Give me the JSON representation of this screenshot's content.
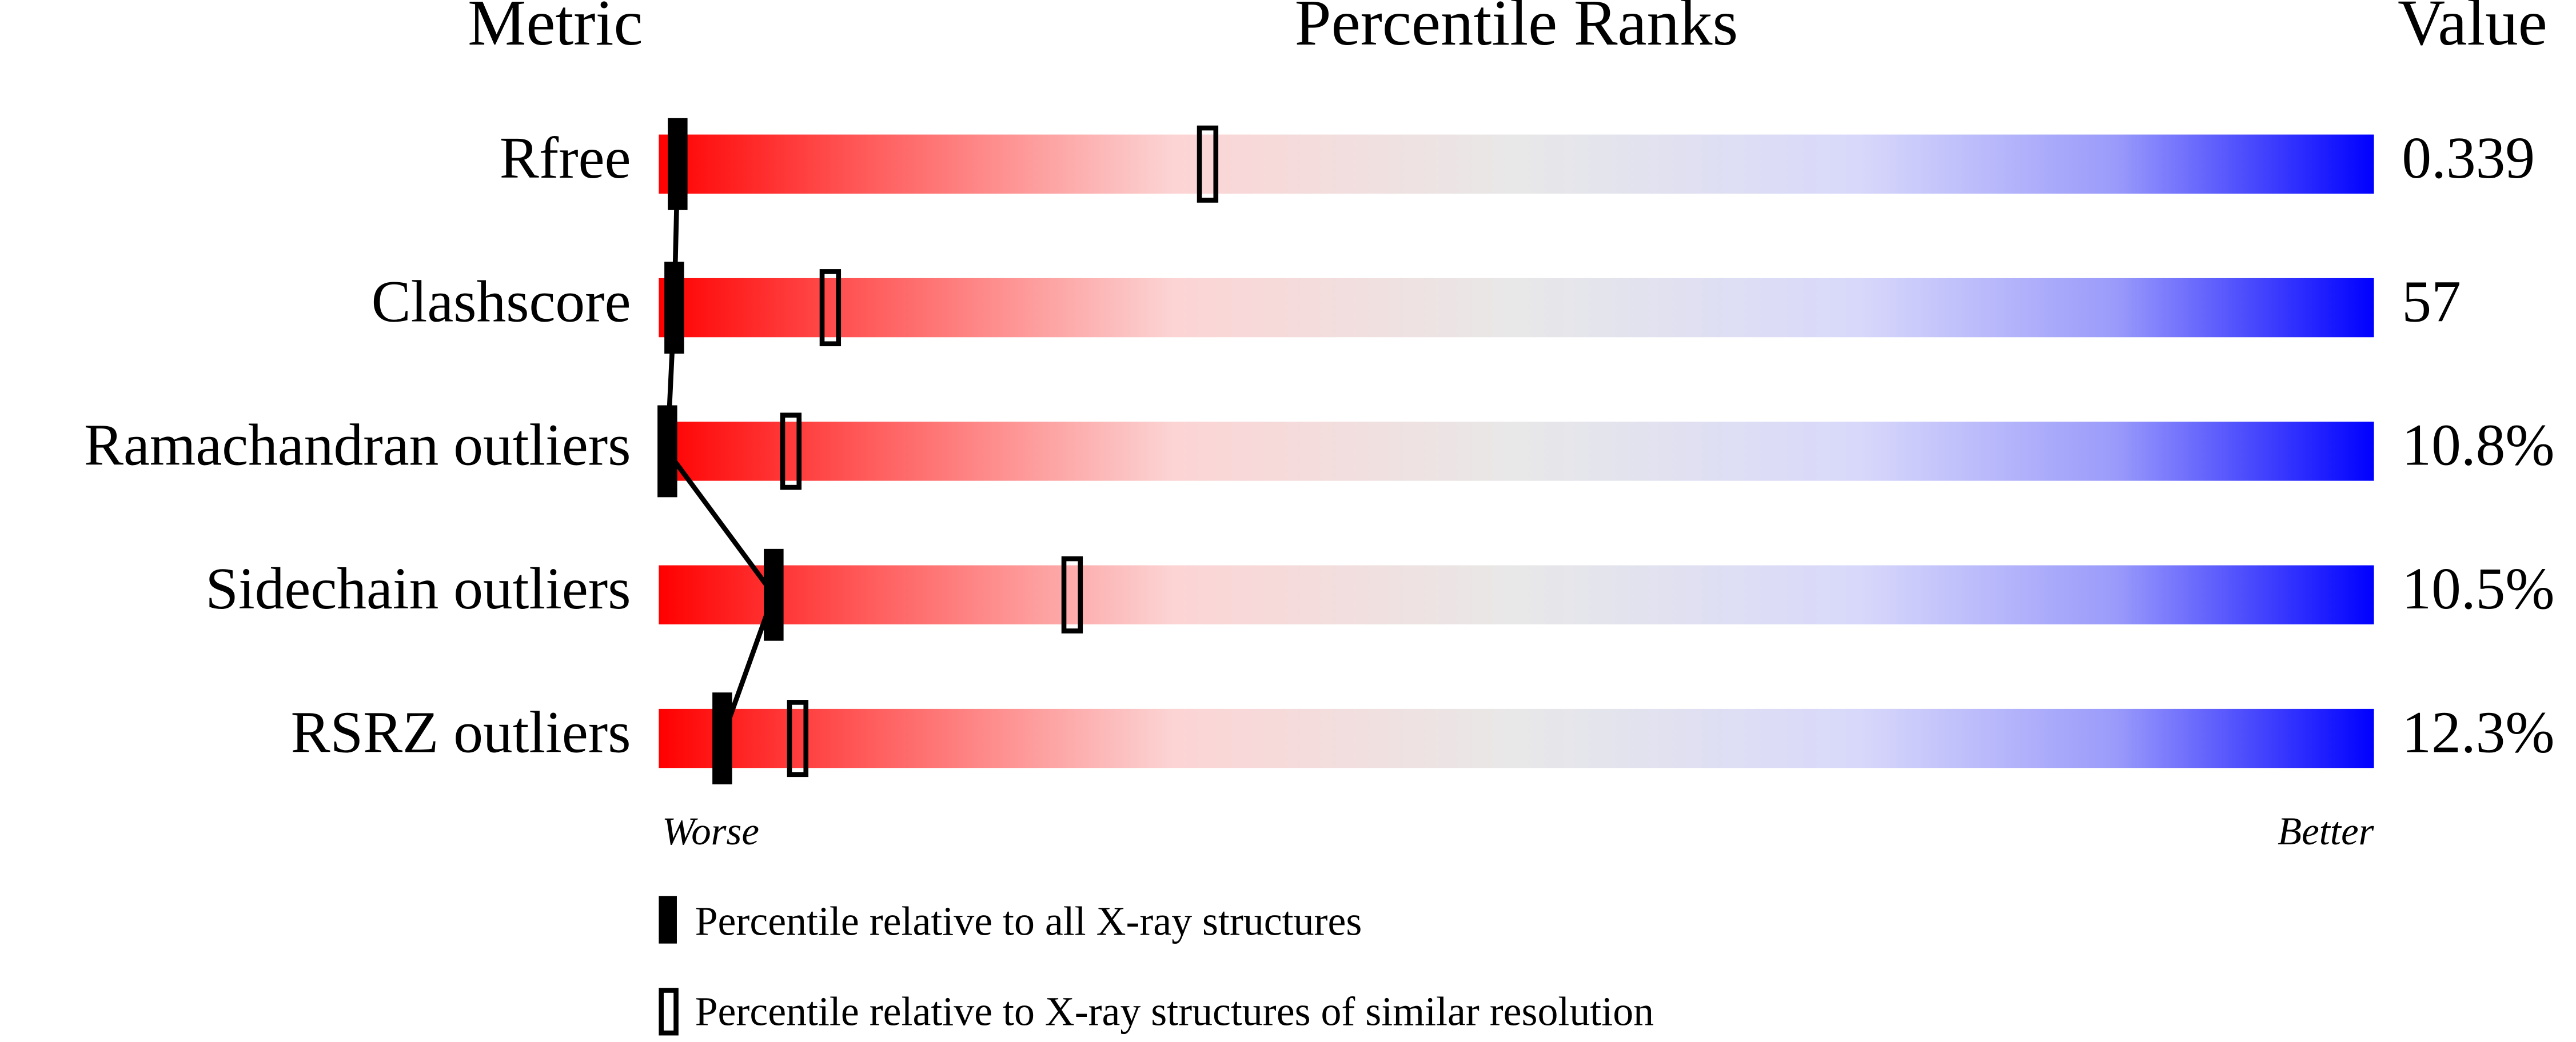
{
  "chart_data": {
    "type": "percentile",
    "headers": {
      "metric": "Metric",
      "ranks": "Percentile Ranks",
      "value": "Value"
    },
    "xlim": [
      0,
      100
    ],
    "rows": [
      {
        "metric": "Rfree",
        "value": "0.339",
        "all": 1.1,
        "similar": 32.0
      },
      {
        "metric": "Clashscore",
        "value": "57",
        "all": 0.9,
        "similar": 10.0
      },
      {
        "metric": "Ramachandran outliers",
        "value": "10.8%",
        "all": 0.5,
        "similar": 7.7
      },
      {
        "metric": "Sidechain outliers",
        "value": "10.5%",
        "all": 6.7,
        "similar": 24.1
      },
      {
        "metric": "RSRZ outliers",
        "value": "12.3%",
        "all": 3.7,
        "similar": 8.1
      }
    ],
    "axis_labels": {
      "left": "Worse",
      "right": "Better"
    },
    "legend": {
      "all": "Percentile relative to all X-ray structures",
      "similar": "Percentile relative to X-ray structures of similar resolution"
    }
  }
}
